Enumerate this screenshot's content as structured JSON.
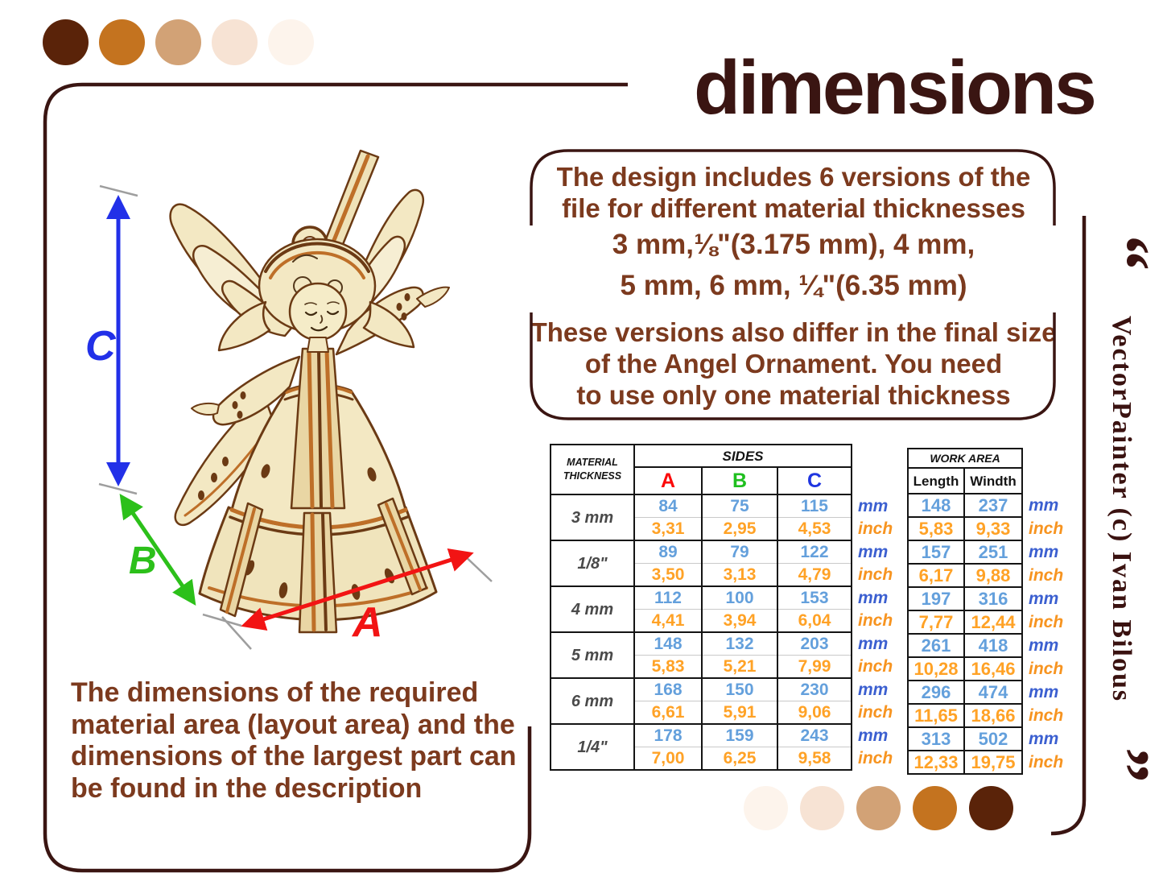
{
  "title": "dimensions",
  "palette_top": [
    "#5A2309",
    "#C4731F",
    "#D2A276",
    "#F7E3D4",
    "#FDF4EC"
  ],
  "palette_bottom": [
    "#FDF4EC",
    "#F7E3D4",
    "#D2A276",
    "#C4731F",
    "#5A2309"
  ],
  "info_box": {
    "lines": [
      "The design includes 6 versions of the",
      "file for different material thicknesses",
      "3 mm,⅛\"(3.175 mm), 4 mm,",
      "5 mm, 6 mm, ¼\"(6.35 mm)",
      "These versions also differ in the final size",
      "of the Angel Ornament. You need",
      "to use only one material thickness"
    ]
  },
  "note_text": {
    "lines": [
      "The dimensions of the required",
      "material area (layout area) and the",
      "dimensions of the largest part can",
      "be found in the description"
    ]
  },
  "dimension_labels": {
    "a": "A",
    "b": "B",
    "c": "C"
  },
  "units": {
    "mm": "mm",
    "inch": "inch"
  },
  "sides_table": {
    "corner_header": [
      "MATERIAL",
      "THICKNESS"
    ],
    "title": "SIDES",
    "columns": [
      "A",
      "B",
      "C"
    ],
    "rows": [
      {
        "thickness": "3 mm",
        "mm": [
          "84",
          "75",
          "115"
        ],
        "inch": [
          "3,31",
          "2,95",
          "4,53"
        ]
      },
      {
        "thickness": "1/8\"",
        "mm": [
          "89",
          "79",
          "122"
        ],
        "inch": [
          "3,50",
          "3,13",
          "4,79"
        ]
      },
      {
        "thickness": "4 mm",
        "mm": [
          "112",
          "100",
          "153"
        ],
        "inch": [
          "4,41",
          "3,94",
          "6,04"
        ]
      },
      {
        "thickness": "5 mm",
        "mm": [
          "148",
          "132",
          "203"
        ],
        "inch": [
          "5,83",
          "5,21",
          "7,99"
        ]
      },
      {
        "thickness": "6 mm",
        "mm": [
          "168",
          "150",
          "230"
        ],
        "inch": [
          "6,61",
          "5,91",
          "9,06"
        ]
      },
      {
        "thickness": "1/4\"",
        "mm": [
          "178",
          "159",
          "243"
        ],
        "inch": [
          "7,00",
          "6,25",
          "9,58"
        ]
      }
    ]
  },
  "work_area_table": {
    "title": "WORK AREA",
    "columns": [
      "Length",
      "Windth"
    ],
    "rows": [
      {
        "mm": [
          "148",
          "237"
        ],
        "inch": [
          "5,83",
          "9,33"
        ]
      },
      {
        "mm": [
          "157",
          "251"
        ],
        "inch": [
          "6,17",
          "9,88"
        ]
      },
      {
        "mm": [
          "197",
          "316"
        ],
        "inch": [
          "7,77",
          "12,44"
        ]
      },
      {
        "mm": [
          "261",
          "418"
        ],
        "inch": [
          "10,28",
          "16,46"
        ]
      },
      {
        "mm": [
          "296",
          "474"
        ],
        "inch": [
          "11,65",
          "18,66"
        ]
      },
      {
        "mm": [
          "313",
          "502"
        ],
        "inch": [
          "12,33",
          "19,75"
        ]
      }
    ]
  },
  "watermark": {
    "open_quote": "“",
    "text": "VectorPainter (c) Ivan Bilous",
    "close_quote": "”"
  },
  "colors": {
    "title_brown": "#3A1512",
    "text_brown": "#7C3A1E",
    "frame_brown": "#3A1512",
    "value_mm_blue": "#64A0DC",
    "value_inch_orange": "#FFA226",
    "unit_mm_blue": "#3B5FD0",
    "unit_inch_orange": "#F79420",
    "dim_a_red": "#F21414",
    "dim_b_green": "#2CC01A",
    "dim_c_blue": "#2230E8"
  }
}
